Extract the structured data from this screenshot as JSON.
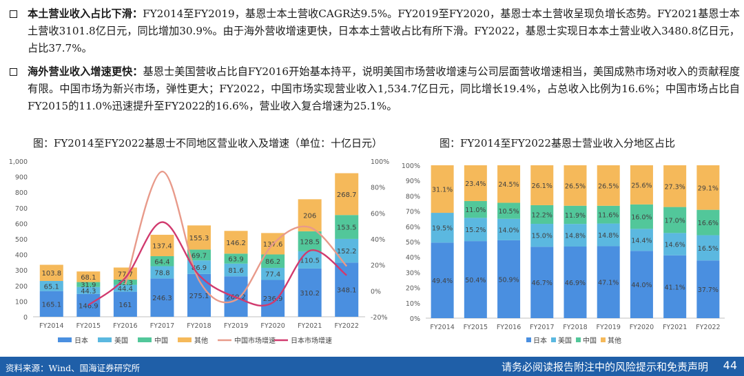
{
  "bullets": [
    {
      "head": "本土营业收入占比下滑：",
      "body": "FY2014至FY2019，基恩士本土营收CAGR达9.5%。FY2019至FY2020，基恩士本土营收呈现负增长态势。FY2021基恩士本土营收3101.8亿日元，同比增加30.9%。由于海外营收增速更快，日本本土营收占比有所下滑。FY2022，基恩士实现日本本土营业收入3480.8亿日元，占比37.7%。"
    },
    {
      "head": "海外营业收入增速更快：",
      "body": "基恩士美国营收占比自FY2016开始基本持平，说明美国市场营收增速与公司层面营收增速相当，美国成熟市场对收入的贡献程度有限。中国市场为新兴市场，弹性更大；FY2022，中国市场实现营业收入1,534.7亿日元，同比增长19.4%，占总收入比例为16.6%；中国市场占比自FY2015的11.0%迅速提升至FY2022的16.6%，营业收入复合增速为25.1%。"
    }
  ],
  "chart_titles": [
    "图：FY2014至FY2022基恩士不同地区营业收入及增速（单位：十亿日元）",
    "图：FY2014至FY2022基恩士营业收入分地区占比"
  ],
  "colors": {
    "japan": "#4a8fe0",
    "us": "#5bb8e0",
    "china": "#52c79a",
    "other": "#f5b95a",
    "china_growth_line": "#e89a8a",
    "japan_growth_line": "#d13a6e"
  },
  "chart_data": [
    {
      "type": "bar",
      "stacked": true,
      "categories": [
        "FY2014",
        "FY2015",
        "FY2016",
        "FY2017",
        "FY2018",
        "FY2019",
        "FY2020",
        "FY2021",
        "FY2022"
      ],
      "series": [
        {
          "name": "日本",
          "values": [
            165.1,
            146.9,
            161.0,
            246.3,
            275.1,
            260.2,
            236.9,
            310.2,
            348.1
          ]
        },
        {
          "name": "美国",
          "values": [
            65.1,
            44.3,
            44.4,
            78.8,
            86.9,
            81.6,
            77.4,
            110.5,
            152.2
          ]
        },
        {
          "name": "中国",
          "values": [
            null,
            31.9,
            33.3,
            64.4,
            69.7,
            63.9,
            86.2,
            128.5,
            153.5
          ]
        },
        {
          "name": "其他",
          "values": [
            103.8,
            68.1,
            77.7,
            137.4,
            155.3,
            146.2,
            137.6,
            206.0,
            268.7
          ]
        }
      ],
      "line_series": [
        {
          "name": "中国市场增速",
          "values": [
            null,
            null,
            5,
            92,
            8,
            -7,
            36,
            49,
            19
          ]
        },
        {
          "name": "日本市场增速",
          "values": [
            null,
            -11,
            10,
            53,
            12,
            -5,
            -9,
            31,
            12
          ]
        }
      ],
      "y_ticks": [
        "0",
        "100",
        "200",
        "300",
        "400",
        "500",
        "600",
        "700",
        "800",
        "900",
        "1,000"
      ],
      "y2_ticks": [
        "-20%",
        "0%",
        "20%",
        "40%",
        "60%",
        "80%",
        "100%"
      ],
      "ylim": [
        0,
        1000
      ],
      "y2lim": [
        -20,
        100
      ],
      "legend": [
        "日本",
        "美国",
        "中国",
        "其他",
        "中国市场增速",
        "日本市场增速"
      ]
    },
    {
      "type": "bar",
      "stacked": true,
      "percent": true,
      "categories": [
        "FY2014",
        "FY2015",
        "FY2016",
        "FY2017",
        "FY2018",
        "FY2019",
        "FY2020",
        "FY2021",
        "FY2022"
      ],
      "series": [
        {
          "name": "日本",
          "values": [
            49.4,
            50.4,
            50.9,
            46.7,
            46.9,
            47.1,
            44.0,
            41.1,
            37.7
          ]
        },
        {
          "name": "美国",
          "values": [
            19.5,
            15.2,
            14.0,
            15.0,
            14.8,
            14.8,
            14.4,
            14.6,
            16.5
          ]
        },
        {
          "name": "中国",
          "values": [
            null,
            11.0,
            10.5,
            12.2,
            11.9,
            11.6,
            16.0,
            17.0,
            16.6
          ]
        },
        {
          "name": "其他",
          "values": [
            31.1,
            23.4,
            24.5,
            26.1,
            26.5,
            26.5,
            25.6,
            27.3,
            29.1
          ]
        }
      ],
      "labels": [
        [
          "49.4%",
          "50.4%",
          "50.9%",
          "46.7%",
          "46.9%",
          "47.1%",
          "44.0%",
          "41.1%",
          "37.7%"
        ],
        [
          "19.5%",
          "15.2%",
          "14.0%",
          "15.0%",
          "14.8%",
          "14.8%",
          "14.4%",
          "14.6%",
          "16.5%"
        ],
        [
          null,
          "11.0%",
          "10.5%",
          "12.2%",
          "11.9%",
          "11.6%",
          "16.0%",
          "17.0%",
          "16.6%"
        ],
        [
          "31.1%",
          "23.4%",
          "24.5%",
          "26.1%",
          "26.5%",
          "26.5%",
          "25.6%",
          "27.3%",
          "29.1%"
        ]
      ],
      "y_ticks": [
        "0%",
        "10%",
        "20%",
        "30%",
        "40%",
        "50%",
        "60%",
        "70%",
        "80%",
        "90%",
        "100%"
      ],
      "ylim": [
        0,
        100
      ],
      "legend": [
        "日本",
        "美国",
        "中国",
        "其他"
      ]
    }
  ],
  "footer": {
    "source": "资料来源：Wind、国海证券研究所",
    "disclaimer": "请务必阅读报告附注中的风险提示和免责声明",
    "page": "44"
  }
}
